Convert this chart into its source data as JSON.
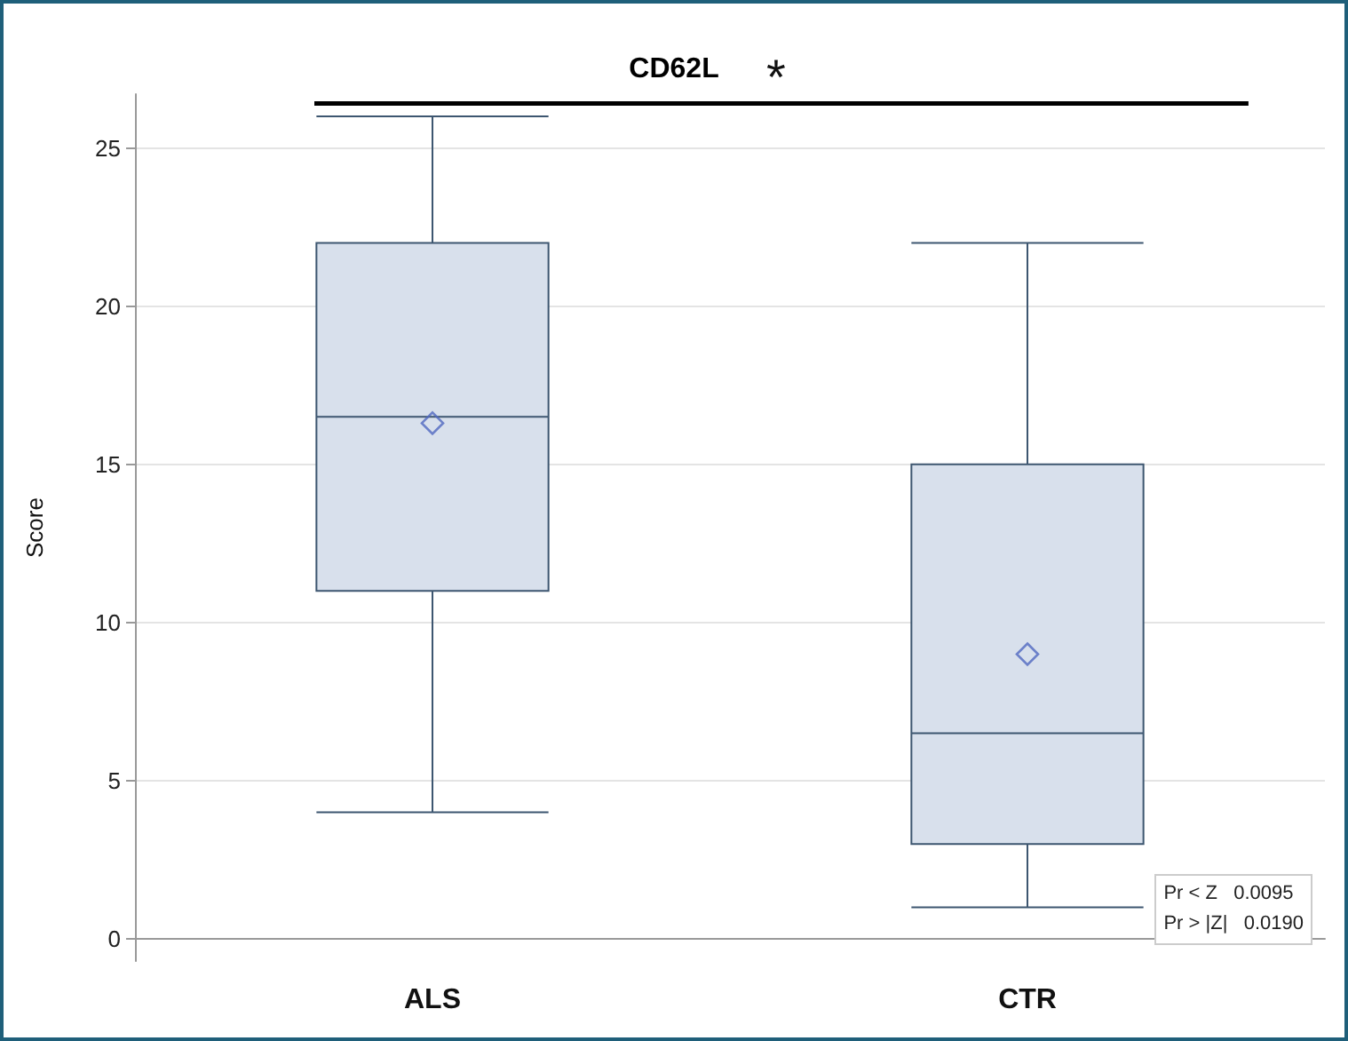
{
  "chart_data": {
    "type": "box",
    "title": "CD62L",
    "ylabel": "Score",
    "categories": [
      "ALS",
      "CTR"
    ],
    "boxes": [
      {
        "low": 4,
        "q1": 11,
        "median": 16.5,
        "q3": 22,
        "high": 26,
        "mean": 16.3
      },
      {
        "low": 1,
        "q1": 3,
        "median": 6.5,
        "q3": 15,
        "high": 22,
        "mean": 9
      }
    ],
    "color": "#3d5670",
    "ylim": [
      -0.7,
      26.7
    ],
    "yticks": [
      0,
      5,
      10,
      15,
      20,
      25
    ],
    "grid": "y",
    "marker": "diamond",
    "annotations": [
      "*",
      "Pr < Z   0.0095",
      "Pr > |Z|   0.0190"
    ]
  }
}
